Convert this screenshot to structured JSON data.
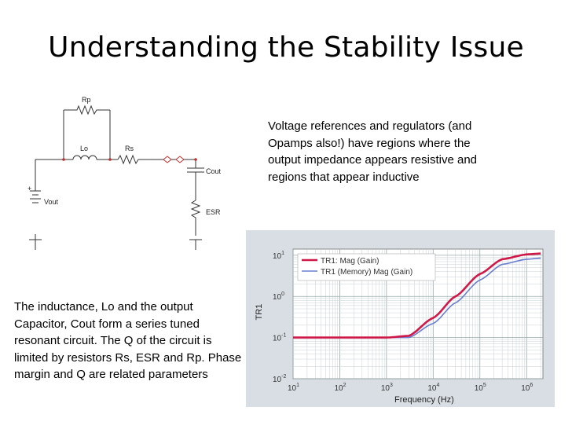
{
  "slide": {
    "title": "Understanding the Stability Issue",
    "right_paragraph": "Voltage references and regulators (and Opamps also!) have regions where the output impedance appears resistive and regions that appear inductive",
    "left_paragraph": "The inductance, Lo and the output Capacitor, Cout form a series tuned resonant circuit.  The Q of the circuit is limited by resistors Rs, ESR and Rp. Phase margin and Q are related parameters"
  },
  "circuit": {
    "labels": {
      "rp": "Rp",
      "lo": "Lo",
      "rs": "Rs",
      "cout": "Cout",
      "esr": "ESR",
      "vout": "Vout",
      "plus": "+"
    }
  },
  "chart_data": {
    "type": "line",
    "title": "",
    "xlabel": "Frequency (Hz)",
    "ylabel": "TR1",
    "x_scale": "log",
    "y_scale": "log",
    "xlim": [
      10,
      1000000
    ],
    "ylim": [
      0.01,
      10
    ],
    "x_ticks": [
      "10^1",
      "10^2",
      "10^3",
      "10^4",
      "10^5",
      "10^6"
    ],
    "y_ticks": [
      "10^-2",
      "10^-1",
      "10^0",
      "10^1"
    ],
    "grid": true,
    "legend_position": "top-left",
    "x": [
      10,
      100,
      1000,
      3000,
      10000,
      30000,
      100000,
      300000,
      1000000,
      2000000
    ],
    "series": [
      {
        "name": "TR1: Mag (Gain)",
        "color": "#d01848",
        "values": [
          0.1,
          0.1,
          0.1,
          0.11,
          0.3,
          1.0,
          3.5,
          8.0,
          10.5,
          11.0
        ]
      },
      {
        "name": "TR1 (Memory) Mag (Gain)",
        "color": "#6a7ed0",
        "values": [
          0.1,
          0.1,
          0.1,
          0.1,
          0.22,
          0.7,
          2.5,
          6.0,
          8.0,
          8.5
        ]
      }
    ]
  }
}
